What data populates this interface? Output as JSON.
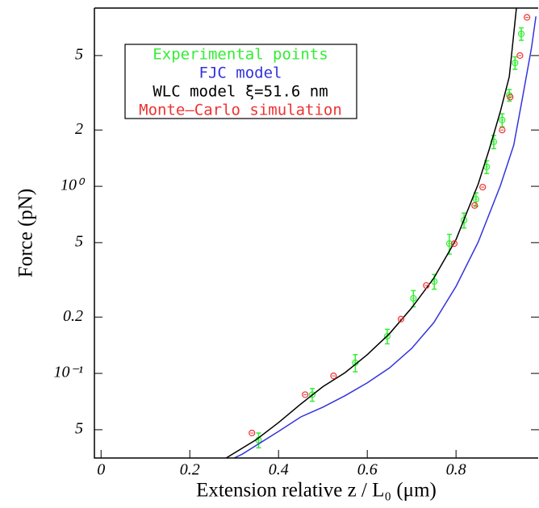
{
  "chart_data": {
    "type": "line",
    "x_label": "Extension relative  z / L₀ (μm)",
    "y_label": "Force (pN)",
    "xlim": [
      -0.015,
      0.987
    ],
    "ylim": [
      0.0353,
      8.97
    ],
    "y_scale": "log",
    "xticks": [
      0,
      0.2,
      0.4,
      0.6,
      0.8
    ],
    "yticks": [
      {
        "value": 0.05,
        "label": "5"
      },
      {
        "value": 0.1,
        "label": "10⁻¹"
      },
      0.2,
      {
        "value": 0.5,
        "label": "5"
      },
      {
        "value": 1,
        "label": "10⁰"
      },
      2,
      5
    ],
    "legend": "upper left",
    "series": [
      {
        "name": "Experimental points",
        "color": "#33ee33",
        "type": "scatter",
        "x": [
          0.355,
          0.476,
          0.573,
          0.645,
          0.704,
          0.751,
          0.785,
          0.818,
          0.845,
          0.869,
          0.885,
          0.904,
          0.92,
          0.933,
          0.947
        ],
        "values": [
          0.044,
          0.077,
          0.114,
          0.158,
          0.252,
          0.31,
          0.494,
          0.659,
          0.853,
          1.27,
          1.73,
          2.26,
          3.07,
          4.57,
          6.53
        ],
        "errors": [
          0.004,
          0.006,
          0.012,
          0.014,
          0.025,
          0.028,
          0.06,
          0.06,
          0.07,
          0.1,
          0.14,
          0.18,
          0.22,
          0.35,
          0.5
        ]
      },
      {
        "name": "FJC model",
        "color": "#3333dd",
        "type": "line",
        "x": [
          0.3,
          0.318,
          0.4,
          0.45,
          0.5,
          0.55,
          0.6,
          0.65,
          0.7,
          0.75,
          0.8,
          0.85,
          0.9,
          0.93,
          0.95,
          0.97,
          0.98
        ],
        "values": [
          0.0353,
          0.037,
          0.049,
          0.0585,
          0.066,
          0.076,
          0.089,
          0.107,
          0.136,
          0.187,
          0.292,
          0.504,
          1.01,
          1.66,
          3.0,
          5.5,
          8.1
        ]
      },
      {
        "name": "WLC model ξ=51.6 nm",
        "color": "#000000",
        "type": "line",
        "x": [
          0.282,
          0.35,
          0.4,
          0.45,
          0.5,
          0.55,
          0.6,
          0.65,
          0.7,
          0.75,
          0.8,
          0.85,
          0.875,
          0.9,
          0.92,
          0.936
        ],
        "values": [
          0.0353,
          0.0443,
          0.0546,
          0.0686,
          0.085,
          0.101,
          0.126,
          0.163,
          0.224,
          0.323,
          0.52,
          1.03,
          1.58,
          2.52,
          3.86,
          8.97
        ]
      },
      {
        "name": "Monte–Carlo simulation",
        "color": "#ee3333",
        "type": "scatter",
        "x": [
          0.34,
          0.46,
          0.524,
          0.676,
          0.733,
          0.796,
          0.842,
          0.86,
          0.904,
          0.922,
          0.944,
          0.96
        ],
        "values": [
          0.048,
          0.077,
          0.097,
          0.195,
          0.295,
          0.494,
          0.79,
          0.99,
          2.0,
          3.0,
          5.0,
          8.0
        ]
      }
    ]
  }
}
